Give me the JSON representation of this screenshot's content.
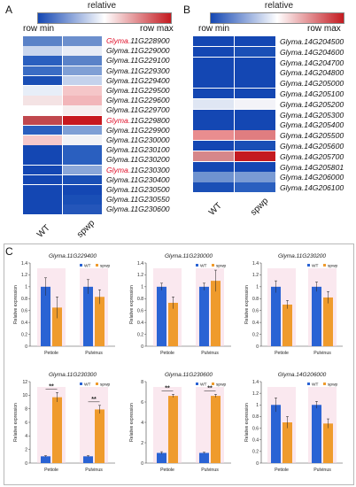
{
  "panels": {
    "a": "A",
    "b": "B",
    "c": "C"
  },
  "heatmap_A": {
    "colorbar_title": "relative",
    "row_min": "row min",
    "row_max": "row max",
    "columns": [
      "WT",
      "spwp"
    ],
    "genes": [
      {
        "prefix": "Glyma.",
        "id": "11G228900",
        "red_prefix": true
      },
      {
        "prefix": "",
        "id": "Glyma.11G229000",
        "red_prefix": false
      },
      {
        "prefix": "",
        "id": "Glyma.11G229100",
        "red_prefix": false
      },
      {
        "prefix": "",
        "id": "Glyma.11G229300",
        "red_prefix": false
      },
      {
        "prefix": "",
        "id": "Glyma.11G229400",
        "red_prefix": false
      },
      {
        "prefix": "",
        "id": "Glyma.11G229500",
        "red_prefix": false
      },
      {
        "prefix": "",
        "id": "Glyma.11G229600",
        "red_prefix": false
      },
      {
        "prefix": "",
        "id": "Glyma.11G229700",
        "red_prefix": false
      },
      {
        "prefix": "Glyma.",
        "id": "11G229800",
        "red_prefix": true
      },
      {
        "prefix": "",
        "id": "Glyma.11G229900",
        "red_prefix": false
      },
      {
        "prefix": "",
        "id": "Glyma.11G230000",
        "red_prefix": false
      },
      {
        "prefix": "",
        "id": "Glyma.11G230100",
        "red_prefix": false
      },
      {
        "prefix": "",
        "id": "Glyma.11G230200",
        "red_prefix": false
      },
      {
        "prefix": "Glyma.",
        "id": "11G230300",
        "red_prefix": true
      },
      {
        "prefix": "",
        "id": "Glyma.11G230400",
        "red_prefix": false
      },
      {
        "prefix": "",
        "id": "Glyma.11G230500",
        "red_prefix": false
      },
      {
        "prefix": "",
        "id": "Glyma.11G230550",
        "red_prefix": false
      },
      {
        "prefix": "",
        "id": "Glyma.11G230600",
        "red_prefix": false
      }
    ],
    "cell_colors": [
      [
        "#5a82c8",
        "#6c8fcd"
      ],
      [
        "#c9d6ee",
        "#e8ecf6"
      ],
      [
        "#2a5fbf",
        "#5a82c8"
      ],
      [
        "#3a6cc4",
        "#7f9fd5"
      ],
      [
        "#1a4fb6",
        "#c4d2ec"
      ],
      [
        "#e7eef8",
        "#f5c6c8"
      ],
      [
        "#f4e3e4",
        "#f2b6b9"
      ],
      [
        "#ffffff",
        "#f7eeee"
      ],
      [
        "#c0484e",
        "#c7191f"
      ],
      [
        "#2a5fbf",
        "#7f9fd5"
      ],
      [
        "#f5c8ca",
        "#f2f2f6"
      ],
      [
        "#1447b3",
        "#2a5fbf"
      ],
      [
        "#1447b3",
        "#2a5fbf"
      ],
      [
        "#1447b3",
        "#8aa6d8"
      ],
      [
        "#1447b3",
        "#1a4fb6"
      ],
      [
        "#1447b3",
        "#1447b3"
      ],
      [
        "#1447b3",
        "#1a4fb6"
      ],
      [
        "#1447b3",
        "#2456ba"
      ]
    ]
  },
  "heatmap_B": {
    "colorbar_title": "relative",
    "row_min": "row min",
    "row_max": "row max",
    "columns": [
      "WT",
      "spwp"
    ],
    "genes": [
      "Glyma.14G204500",
      "Glyma.14G204600",
      "Glyma.14G204700",
      "Glyma.14G204800",
      "Glyma.14G205000",
      "Glyma.14G205100",
      "Glyma.14G205200",
      "Glyma.14G205300",
      "Glyma.14G205400",
      "Glyma.14G205500",
      "Glyma.14G205600",
      "Glyma.14G205700",
      "Glyma.14G205801",
      "Glyma.14G206000",
      "Glyma.14G206100"
    ],
    "cell_colors": [
      [
        "#1447b3",
        "#1447b3"
      ],
      [
        "#1447b3",
        "#1a4fb6"
      ],
      [
        "#1447b3",
        "#1447b3"
      ],
      [
        "#1447b3",
        "#1447b3"
      ],
      [
        "#1447b3",
        "#1447b3"
      ],
      [
        "#1447b3",
        "#1447b3"
      ],
      [
        "#dfe6f3",
        "#f3f3f8"
      ],
      [
        "#1447b3",
        "#1447b3"
      ],
      [
        "#1447b3",
        "#1447b3"
      ],
      [
        "#e98d8f",
        "#e07d80"
      ],
      [
        "#1447b3",
        "#1a4fb6"
      ],
      [
        "#d6878a",
        "#c41a20"
      ],
      [
        "#1447b3",
        "#1447b3"
      ],
      [
        "#6f93d0",
        "#7a9bd4"
      ],
      [
        "#1a4fb6",
        "#2a5fbf"
      ]
    ]
  },
  "bar_charts": {
    "legend_wt": "WT",
    "legend_spwp": "spwp",
    "ylabel": "Relative expression",
    "categories": [
      "Petiole",
      "Pulvinus"
    ],
    "colors": {
      "wt": "#2a63d4",
      "spwp": "#ef9b2d",
      "pink": "#f6d6e2"
    }
  },
  "chart_data": [
    {
      "type": "bar",
      "title": "Glyma.11G229400",
      "categories": [
        "Petiole",
        "Pulvinus"
      ],
      "ylim": [
        0,
        1.4
      ],
      "yticks": [
        "0",
        "0.2",
        "0.4",
        "0.6",
        "0.8",
        "1",
        "1.2",
        "1.4"
      ],
      "series": [
        {
          "name": "WT",
          "values": [
            1.0,
            1.0
          ],
          "errors": [
            0.15,
            0.12
          ]
        },
        {
          "name": "spwp",
          "values": [
            0.65,
            0.83
          ],
          "errors": [
            0.18,
            0.12
          ]
        }
      ],
      "significance": [
        "",
        ""
      ]
    },
    {
      "type": "bar",
      "title": "Glyma.11G230000",
      "categories": [
        "Petiole",
        "Pulvinus"
      ],
      "ylim": [
        0,
        1.4
      ],
      "yticks": [
        "0",
        "0.2",
        "0.4",
        "0.6",
        "0.8",
        "1",
        "1.2",
        "1.4"
      ],
      "series": [
        {
          "name": "WT",
          "values": [
            1.0,
            1.0
          ],
          "errors": [
            0.06,
            0.06
          ]
        },
        {
          "name": "spwp",
          "values": [
            0.73,
            1.1
          ],
          "errors": [
            0.1,
            0.18
          ]
        }
      ],
      "significance": [
        "",
        ""
      ]
    },
    {
      "type": "bar",
      "title": "Glyma.11G230200",
      "categories": [
        "Petiole",
        "Pulvinus"
      ],
      "ylim": [
        0,
        1.4
      ],
      "yticks": [
        "0",
        "0.2",
        "0.4",
        "0.6",
        "0.8",
        "1",
        "1.2",
        "1.4"
      ],
      "series": [
        {
          "name": "WT",
          "values": [
            1.0,
            1.0
          ],
          "errors": [
            0.1,
            0.08
          ]
        },
        {
          "name": "spwp",
          "values": [
            0.7,
            0.82
          ],
          "errors": [
            0.07,
            0.1
          ]
        }
      ],
      "significance": [
        "",
        ""
      ]
    },
    {
      "type": "bar",
      "title": "Glyma.11G230300",
      "categories": [
        "Petiole",
        "Pulvinus"
      ],
      "ylim": [
        0,
        12
      ],
      "yticks": [
        "0",
        "2",
        "4",
        "6",
        "8",
        "10",
        "12"
      ],
      "series": [
        {
          "name": "WT",
          "values": [
            1.0,
            1.0
          ],
          "errors": [
            0.1,
            0.1
          ]
        },
        {
          "name": "spwp",
          "values": [
            9.7,
            7.9
          ],
          "errors": [
            0.7,
            0.6
          ]
        }
      ],
      "significance": [
        "**",
        "**"
      ]
    },
    {
      "type": "bar",
      "title": "Glyma.11G230600",
      "categories": [
        "Petiole",
        "Pulvinus"
      ],
      "ylim": [
        0,
        8
      ],
      "yticks": [
        "0",
        "2",
        "4",
        "6",
        "8"
      ],
      "series": [
        {
          "name": "WT",
          "values": [
            1.0,
            1.0
          ],
          "errors": [
            0.12,
            0.06
          ]
        },
        {
          "name": "spwp",
          "values": [
            6.6,
            6.6
          ],
          "errors": [
            0.15,
            0.15
          ]
        }
      ],
      "significance": [
        "**",
        "**"
      ]
    },
    {
      "type": "bar",
      "title": "Glyma.14G206000",
      "categories": [
        "Petiole",
        "Pulvinus"
      ],
      "ylim": [
        0,
        1.4
      ],
      "yticks": [
        "0",
        "0.2",
        "0.4",
        "0.6",
        "0.8",
        "1",
        "1.2",
        "1.4"
      ],
      "series": [
        {
          "name": "WT",
          "values": [
            1.0,
            1.0
          ],
          "errors": [
            0.12,
            0.06
          ]
        },
        {
          "name": "spwp",
          "values": [
            0.7,
            0.68
          ],
          "errors": [
            0.1,
            0.08
          ]
        }
      ],
      "significance": [
        "",
        ""
      ]
    }
  ]
}
